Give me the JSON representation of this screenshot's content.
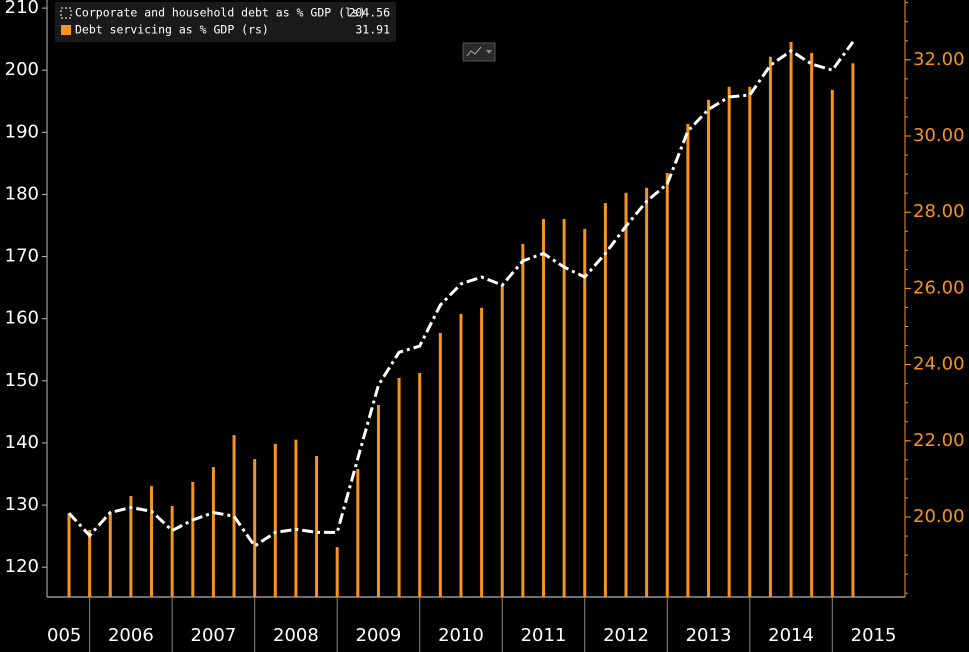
{
  "chart_data": {
    "type": "bar_line",
    "categories": [
      null,
      null,
      null,
      null,
      null,
      null,
      null,
      null,
      null,
      null,
      null,
      null,
      null,
      null,
      null,
      null,
      null,
      null,
      null,
      null,
      null,
      null,
      null,
      null,
      null,
      null,
      null,
      null,
      null,
      null,
      null,
      null,
      null,
      null,
      null,
      null,
      null,
      null,
      null
    ],
    "x_axis_labels": [
      "005",
      "2006",
      "2007",
      "2008",
      "2009",
      "2010",
      "2011",
      "2012",
      "2013",
      "2014",
      "2015"
    ],
    "series": [
      {
        "name": "Corporate and household debt as % GDP (ls)",
        "type": "line",
        "color": "#ffffff",
        "values": [
          128.7,
          125.1,
          128.8,
          129.6,
          129.0,
          125.9,
          127.6,
          128.8,
          128.2,
          123.4,
          125.6,
          126.1,
          125.6,
          125.6,
          137.5,
          149.3,
          154.6,
          155.6,
          162.2,
          165.6,
          166.7,
          165.4,
          169.3,
          170.5,
          168.3,
          166.7,
          170.5,
          174.9,
          178.9,
          181.7,
          190.2,
          193.7,
          195.7,
          196.0,
          200.8,
          203.1,
          201.0,
          200.0,
          204.56
        ]
      },
      {
        "name": "Debt servicing as % GDP (rs)",
        "type": "bar",
        "axis": "y2",
        "color": "#f7941d",
        "values": [
          20.1,
          19.66,
          20.13,
          20.55,
          20.81,
          20.29,
          20.92,
          21.31,
          22.15,
          21.52,
          21.92,
          22.03,
          21.6,
          19.21,
          21.26,
          22.94,
          23.65,
          23.78,
          24.83,
          25.33,
          25.49,
          26.09,
          27.17,
          27.82,
          27.82,
          27.56,
          28.24,
          28.51,
          28.64,
          29.03,
          30.32,
          30.95,
          31.29,
          31.29,
          32.08,
          32.47,
          32.18,
          31.21,
          31.91
        ]
      }
    ],
    "ylim": [
      115.2,
      211.3
    ],
    "yticks": [
      120,
      130,
      140,
      150,
      160,
      170,
      180,
      190,
      200,
      210
    ],
    "y2lim": [
      17.9,
      33.57
    ],
    "y2ticks": [
      {
        "value": 20,
        "label": "20.00"
      },
      {
        "value": 22,
        "label": "22.00"
      },
      {
        "value": 24,
        "label": "24.00"
      },
      {
        "value": 26,
        "label": "26.00"
      },
      {
        "value": 28,
        "label": "28.00"
      },
      {
        "value": 30,
        "label": "30.00"
      },
      {
        "value": 32,
        "label": "32.00"
      }
    ],
    "grid": false
  }
}
